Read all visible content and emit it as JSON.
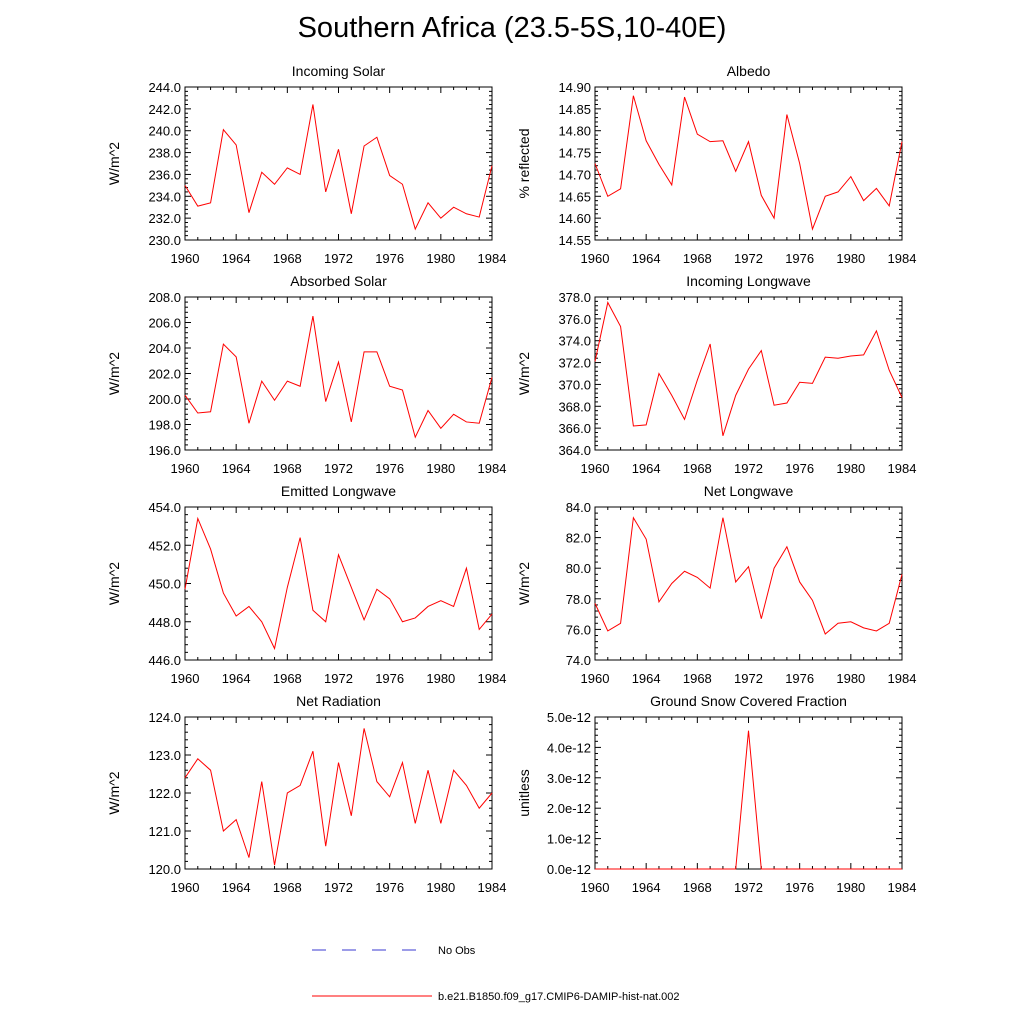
{
  "page": {
    "title": "Southern Africa (23.5-5S,10-40E)"
  },
  "colors": {
    "model_line": "#ff0000",
    "obs_line": "#3a3ad0",
    "axis": "#000000"
  },
  "legend": {
    "entries": [
      {
        "label": "No Obs",
        "style": "dashed",
        "color": "#3a3ad0"
      },
      {
        "label": "b.e21.B1850.f09_g17.CMIP6-DAMIP-hist-nat.002",
        "style": "solid",
        "color": "#ff0000"
      }
    ]
  },
  "chart_data": [
    {
      "type": "line",
      "title": "Incoming Solar",
      "ylabel": "W/m^2",
      "xlim": [
        1960,
        1984
      ],
      "ylim": [
        230,
        244
      ],
      "xticks": [
        1960,
        1964,
        1968,
        1972,
        1976,
        1980,
        1984
      ],
      "yticks": [
        "230.0",
        "232.0",
        "234.0",
        "236.0",
        "238.0",
        "240.0",
        "242.0",
        "244.0"
      ],
      "ytick_values": [
        230,
        232,
        234,
        236,
        238,
        240,
        242,
        244
      ],
      "x": [
        1960,
        1961,
        1962,
        1963,
        1964,
        1965,
        1966,
        1967,
        1968,
        1969,
        1970,
        1971,
        1972,
        1973,
        1974,
        1975,
        1976,
        1977,
        1978,
        1979,
        1980,
        1981,
        1982,
        1983,
        1984
      ],
      "series": [
        {
          "values": [
            235.0,
            233.1,
            233.4,
            240.1,
            238.7,
            232.5,
            236.2,
            235.1,
            236.6,
            236.0,
            242.4,
            234.4,
            238.3,
            232.4,
            238.6,
            239.4,
            235.9,
            235.1,
            231.0,
            233.4,
            232.0,
            233.0,
            232.4,
            232.1,
            236.8
          ]
        }
      ]
    },
    {
      "type": "line",
      "title": "Albedo",
      "ylabel": "% reflected",
      "xlim": [
        1960,
        1984
      ],
      "ylim": [
        14.55,
        14.9
      ],
      "xticks": [
        1960,
        1964,
        1968,
        1972,
        1976,
        1980,
        1984
      ],
      "yticks": [
        "14.55",
        "14.60",
        "14.65",
        "14.70",
        "14.75",
        "14.80",
        "14.85",
        "14.90"
      ],
      "ytick_values": [
        14.55,
        14.6,
        14.65,
        14.7,
        14.75,
        14.8,
        14.85,
        14.9
      ],
      "x": [
        1960,
        1961,
        1962,
        1963,
        1964,
        1965,
        1966,
        1967,
        1968,
        1969,
        1970,
        1971,
        1972,
        1973,
        1974,
        1975,
        1976,
        1977,
        1978,
        1979,
        1980,
        1981,
        1982,
        1983,
        1984
      ],
      "series": [
        {
          "values": [
            14.725,
            14.65,
            14.667,
            14.88,
            14.777,
            14.723,
            14.676,
            14.877,
            14.792,
            14.775,
            14.777,
            14.707,
            14.775,
            14.652,
            14.6,
            14.837,
            14.725,
            14.575,
            14.65,
            14.66,
            14.695,
            14.64,
            14.668,
            14.628,
            14.775
          ]
        }
      ]
    },
    {
      "type": "line",
      "title": "Absorbed Solar",
      "ylabel": "W/m^2",
      "xlim": [
        1960,
        1984
      ],
      "ylim": [
        196,
        208
      ],
      "xticks": [
        1960,
        1964,
        1968,
        1972,
        1976,
        1980,
        1984
      ],
      "yticks": [
        "196.0",
        "198.0",
        "200.0",
        "202.0",
        "204.0",
        "206.0",
        "208.0"
      ],
      "ytick_values": [
        196,
        198,
        200,
        202,
        204,
        206,
        208
      ],
      "x": [
        1960,
        1961,
        1962,
        1963,
        1964,
        1965,
        1966,
        1967,
        1968,
        1969,
        1970,
        1971,
        1972,
        1973,
        1974,
        1975,
        1976,
        1977,
        1978,
        1979,
        1980,
        1981,
        1982,
        1983,
        1984
      ],
      "series": [
        {
          "values": [
            200.3,
            198.9,
            199.0,
            204.3,
            203.3,
            198.1,
            201.4,
            199.9,
            201.4,
            201.0,
            206.5,
            199.8,
            202.9,
            198.2,
            203.7,
            203.7,
            201.0,
            200.7,
            197.0,
            199.1,
            197.7,
            198.8,
            198.2,
            198.1,
            201.7
          ]
        }
      ]
    },
    {
      "type": "line",
      "title": "Incoming Longwave",
      "ylabel": "W/m^2",
      "xlim": [
        1960,
        1984
      ],
      "ylim": [
        364,
        378
      ],
      "xticks": [
        1960,
        1964,
        1968,
        1972,
        1976,
        1980,
        1984
      ],
      "yticks": [
        "364.0",
        "366.0",
        "368.0",
        "370.0",
        "372.0",
        "374.0",
        "376.0",
        "378.0"
      ],
      "ytick_values": [
        364,
        366,
        368,
        370,
        372,
        374,
        376,
        378
      ],
      "x": [
        1960,
        1961,
        1962,
        1963,
        1964,
        1965,
        1966,
        1967,
        1968,
        1969,
        1970,
        1971,
        1972,
        1973,
        1974,
        1975,
        1976,
        1977,
        1978,
        1979,
        1980,
        1981,
        1982,
        1983,
        1984
      ],
      "series": [
        {
          "values": [
            372.1,
            377.5,
            375.3,
            366.2,
            366.3,
            371.0,
            369.0,
            366.8,
            370.4,
            373.7,
            365.3,
            369.0,
            371.4,
            373.1,
            368.1,
            368.3,
            370.2,
            370.1,
            372.5,
            372.4,
            372.6,
            372.7,
            374.9,
            371.3,
            368.8
          ]
        }
      ]
    },
    {
      "type": "line",
      "title": "Emitted Longwave",
      "ylabel": "W/m^2",
      "xlim": [
        1960,
        1984
      ],
      "ylim": [
        446,
        454
      ],
      "xticks": [
        1960,
        1964,
        1968,
        1972,
        1976,
        1980,
        1984
      ],
      "yticks": [
        "446.0",
        "448.0",
        "450.0",
        "452.0",
        "454.0"
      ],
      "ytick_values": [
        446,
        448,
        450,
        452,
        454
      ],
      "x": [
        1960,
        1961,
        1962,
        1963,
        1964,
        1965,
        1966,
        1967,
        1968,
        1969,
        1970,
        1971,
        1972,
        1973,
        1974,
        1975,
        1976,
        1977,
        1978,
        1979,
        1980,
        1981,
        1982,
        1983,
        1984
      ],
      "series": [
        {
          "values": [
            449.7,
            453.4,
            451.8,
            449.5,
            448.3,
            448.8,
            448.0,
            446.6,
            449.8,
            452.4,
            448.6,
            448.0,
            451.5,
            449.8,
            448.1,
            449.7,
            449.2,
            448.0,
            448.2,
            448.8,
            449.1,
            448.8,
            450.8,
            447.6,
            448.4
          ]
        }
      ]
    },
    {
      "type": "line",
      "title": "Net Longwave",
      "ylabel": "W/m^2",
      "xlim": [
        1960,
        1984
      ],
      "ylim": [
        74,
        84
      ],
      "xticks": [
        1960,
        1964,
        1968,
        1972,
        1976,
        1980,
        1984
      ],
      "yticks": [
        "74.0",
        "76.0",
        "78.0",
        "80.0",
        "82.0",
        "84.0"
      ],
      "ytick_values": [
        74,
        76,
        78,
        80,
        82,
        84
      ],
      "x": [
        1960,
        1961,
        1962,
        1963,
        1964,
        1965,
        1966,
        1967,
        1968,
        1969,
        1970,
        1971,
        1972,
        1973,
        1974,
        1975,
        1976,
        1977,
        1978,
        1979,
        1980,
        1981,
        1982,
        1983,
        1984
      ],
      "series": [
        {
          "values": [
            77.7,
            75.9,
            76.4,
            83.3,
            81.9,
            77.8,
            79.0,
            79.8,
            79.4,
            78.7,
            83.3,
            79.1,
            80.1,
            76.7,
            80.0,
            81.4,
            79.1,
            77.9,
            75.7,
            76.4,
            76.5,
            76.1,
            75.9,
            76.4,
            79.6
          ]
        }
      ]
    },
    {
      "type": "line",
      "title": "Net Radiation",
      "ylabel": "W/m^2",
      "xlim": [
        1960,
        1984
      ],
      "ylim": [
        120,
        124
      ],
      "xticks": [
        1960,
        1964,
        1968,
        1972,
        1976,
        1980,
        1984
      ],
      "yticks": [
        "120.0",
        "121.0",
        "122.0",
        "123.0",
        "124.0"
      ],
      "ytick_values": [
        120,
        121,
        122,
        123,
        124
      ],
      "x": [
        1960,
        1961,
        1962,
        1963,
        1964,
        1965,
        1966,
        1967,
        1968,
        1969,
        1970,
        1971,
        1972,
        1973,
        1974,
        1975,
        1976,
        1977,
        1978,
        1979,
        1980,
        1981,
        1982,
        1983,
        1984
      ],
      "series": [
        {
          "values": [
            122.4,
            122.9,
            122.6,
            121.0,
            121.3,
            120.3,
            122.3,
            120.1,
            122.0,
            122.2,
            123.1,
            120.6,
            122.8,
            121.4,
            123.7,
            122.3,
            121.9,
            122.8,
            121.2,
            122.6,
            121.2,
            122.6,
            122.2,
            121.6,
            122.0
          ]
        }
      ]
    },
    {
      "type": "line",
      "title": "Ground Snow Covered Fraction",
      "ylabel": "unitless",
      "xlim": [
        1960,
        1984
      ],
      "ylim": [
        0,
        5e-12
      ],
      "xticks": [
        1960,
        1964,
        1968,
        1972,
        1976,
        1980,
        1984
      ],
      "yticks": [
        "0.0e-12",
        "1.0e-12",
        "2.0e-12",
        "3.0e-12",
        "4.0e-12",
        "5.0e-12"
      ],
      "ytick_values": [
        0,
        1e-12,
        2e-12,
        3e-12,
        4e-12,
        5e-12
      ],
      "x": [
        1960,
        1961,
        1962,
        1963,
        1964,
        1965,
        1966,
        1967,
        1968,
        1969,
        1970,
        1971,
        1972,
        1973,
        1974,
        1975,
        1976,
        1977,
        1978,
        1979,
        1980,
        1981,
        1982,
        1983,
        1984
      ],
      "series": [
        {
          "values": [
            0,
            0,
            0,
            0,
            0,
            0,
            0,
            0,
            0,
            0,
            0,
            0,
            4.55e-12,
            0,
            0,
            0,
            0,
            0,
            0,
            0,
            0,
            0,
            0,
            0,
            0
          ]
        }
      ]
    }
  ]
}
